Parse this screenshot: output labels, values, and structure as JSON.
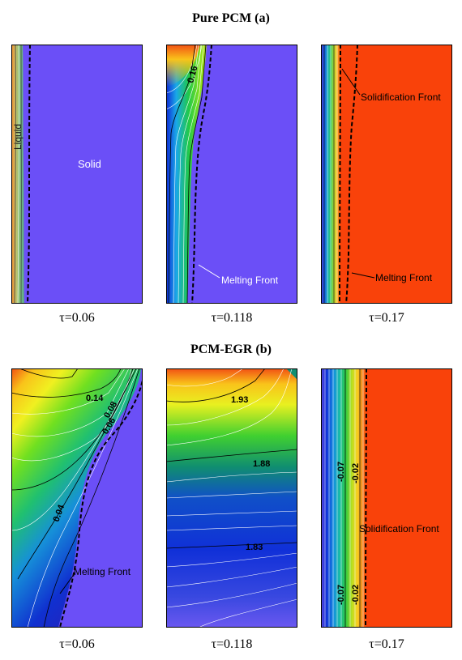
{
  "figure": {
    "row_a_title": "Pure PCM (a)",
    "row_b_title": "PCM-EGR (b)",
    "tau_labels": [
      "τ=0.06",
      "τ=0.118",
      "τ=0.17"
    ]
  },
  "annotations": {
    "liquid": "Liquid",
    "solid": "Solid",
    "melting_front": "Melting Front",
    "solidification_front": "Solidification Front"
  },
  "contour_labels": {
    "a2": "0.16",
    "b1": [
      "0.14",
      "0.08",
      "0.06",
      "0.04"
    ],
    "b2": [
      "1.93",
      "1.88",
      "1.83"
    ],
    "b3": [
      "-0.07",
      "-0.02",
      "-0.07",
      "-0.02"
    ]
  },
  "colors": {
    "solid": "#6b4ff7",
    "hot_red": "#f9420a",
    "border": "#000000"
  }
}
